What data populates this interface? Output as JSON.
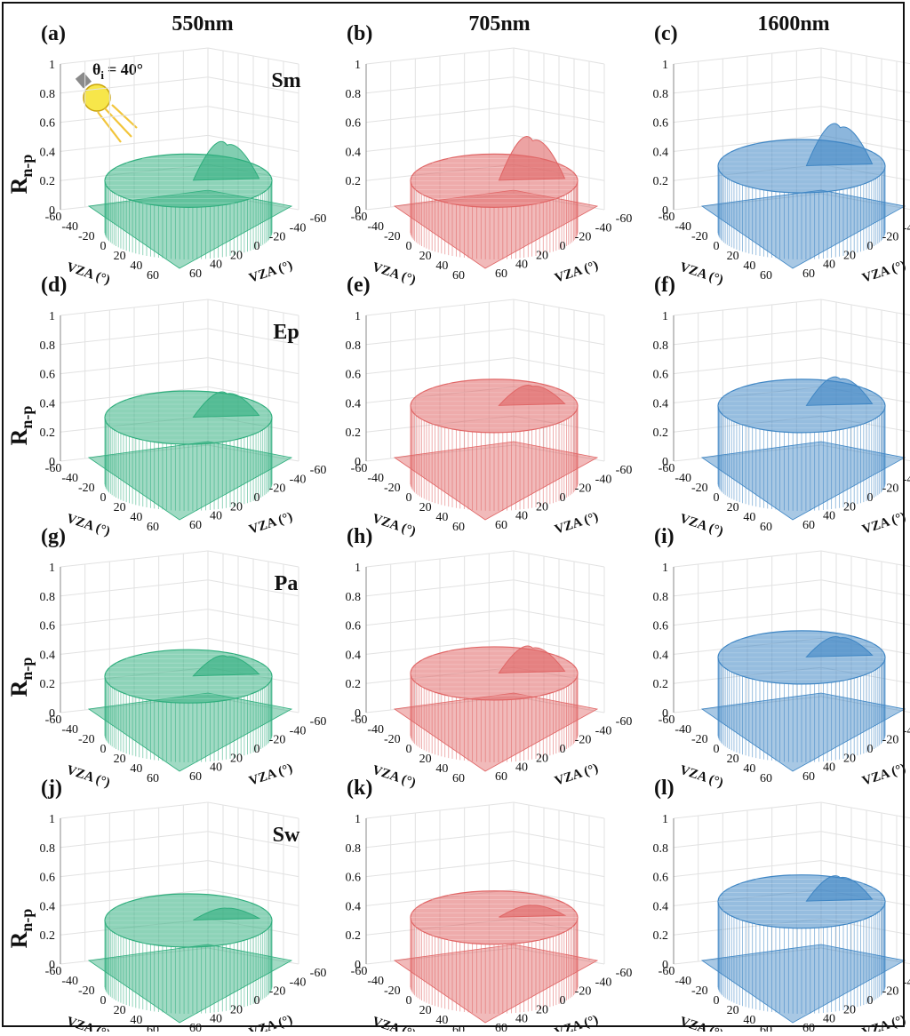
{
  "figure": {
    "column_headers": [
      "550nm",
      "705nm",
      "1600nm"
    ],
    "row_labels": [
      "Sm",
      "Ep",
      "Pa",
      "Sw"
    ],
    "ylabel_main": "R",
    "ylabel_sub": "n-p",
    "incidence_label": "θ",
    "incidence_sub": "i",
    "incidence_value": "= 40°",
    "light_icon": "light-bulb-icon"
  },
  "chart_data": [
    {
      "panel": "(a)",
      "type": "surface",
      "wavelength": "550nm",
      "material": "Sm",
      "color": "#2fae7d",
      "xlabel": "VZA (°)",
      "ylabel": "VZA (°)",
      "zlabel": "Rn-p",
      "xlim": [
        -60,
        60
      ],
      "ylim": [
        -60,
        60
      ],
      "zlim": [
        0,
        1
      ],
      "zticks": [
        0,
        0.2,
        0.4,
        0.6,
        0.8,
        1
      ],
      "xticks": [
        -60,
        -40,
        -20,
        0,
        20,
        40,
        60
      ],
      "yticks": [
        -60,
        -40,
        -20,
        0,
        20,
        40,
        60
      ],
      "base_level": 0.15,
      "peak_value": 0.33,
      "peak_location": [
        40,
        0
      ],
      "grid": true
    },
    {
      "panel": "(b)",
      "type": "surface",
      "wavelength": "705nm",
      "material": "Sm",
      "color": "#e06666",
      "xlabel": "VZA (°)",
      "ylabel": "VZA (°)",
      "zlabel": "Rn-p",
      "xlim": [
        -60,
        60
      ],
      "ylim": [
        -60,
        60
      ],
      "zlim": [
        0,
        1
      ],
      "zticks": [
        0,
        0.2,
        0.4,
        0.6,
        0.8,
        1
      ],
      "xticks": [
        -60,
        -40,
        -20,
        0,
        20,
        40,
        60
      ],
      "yticks": [
        -60,
        -40,
        -20,
        0,
        20,
        40,
        60
      ],
      "base_level": 0.15,
      "peak_value": 0.36,
      "peak_location": [
        40,
        0
      ],
      "grid": true
    },
    {
      "panel": "(c)",
      "type": "surface",
      "wavelength": "1600nm",
      "material": "Sm",
      "color": "#3f86c4",
      "xlabel": "VZA (°)",
      "ylabel": "VZA (°)",
      "zlabel": "Rn-p",
      "xlim": [
        -60,
        60
      ],
      "ylim": [
        -60,
        60
      ],
      "zlim": [
        0,
        1
      ],
      "zticks": [
        0,
        0.2,
        0.4,
        0.6,
        0.8,
        1
      ],
      "xticks": [
        -60,
        -40,
        -20,
        0,
        20,
        40,
        60
      ],
      "yticks": [
        -60,
        -40,
        -20,
        0,
        20,
        40,
        60
      ],
      "base_level": 0.25,
      "peak_value": 0.45,
      "peak_location": [
        40,
        0
      ],
      "grid": true
    },
    {
      "panel": "(d)",
      "type": "surface",
      "wavelength": "550nm",
      "material": "Ep",
      "color": "#2fae7d",
      "xlabel": "VZA (°)",
      "ylabel": "VZA (°)",
      "zlabel": "Rn-p",
      "xlim": [
        -60,
        60
      ],
      "ylim": [
        -60,
        60
      ],
      "zlim": [
        0,
        1
      ],
      "zticks": [
        0,
        0.2,
        0.4,
        0.6,
        0.8,
        1
      ],
      "xticks": [
        -60,
        -40,
        -20,
        0,
        20,
        40,
        60
      ],
      "yticks": [
        -60,
        -40,
        -20,
        0,
        20,
        40,
        60
      ],
      "base_level": 0.25,
      "peak_value": 0.35,
      "peak_location": [
        40,
        0
      ],
      "grid": true
    },
    {
      "panel": "(e)",
      "type": "surface",
      "wavelength": "705nm",
      "material": "Ep",
      "color": "#e06666",
      "xlabel": "VZA (°)",
      "ylabel": "VZA (°)",
      "zlabel": "Rn-p",
      "xlim": [
        -60,
        60
      ],
      "ylim": [
        -60,
        60
      ],
      "zlim": [
        0,
        1
      ],
      "zticks": [
        0,
        0.2,
        0.4,
        0.6,
        0.8,
        1
      ],
      "xticks": [
        -60,
        -40,
        -20,
        0,
        20,
        40,
        60
      ],
      "yticks": [
        -60,
        -40,
        -20,
        0,
        20,
        40,
        60
      ],
      "base_level": 0.33,
      "peak_value": 0.4,
      "peak_location": [
        40,
        0
      ],
      "grid": true
    },
    {
      "panel": "(f)",
      "type": "surface",
      "wavelength": "1600nm",
      "material": "Ep",
      "color": "#3f86c4",
      "xlabel": "VZA (°)",
      "ylabel": "VZA (°)",
      "zlabel": "Rn-p",
      "xlim": [
        -60,
        60
      ],
      "ylim": [
        -60,
        60
      ],
      "zlim": [
        0,
        1
      ],
      "zticks": [
        0,
        0.2,
        0.4,
        0.6,
        0.8,
        1
      ],
      "xticks": [
        -60,
        -40,
        -20,
        0,
        20,
        40,
        60
      ],
      "yticks": [
        -60,
        -40,
        -20,
        0,
        20,
        40,
        60
      ],
      "base_level": 0.33,
      "peak_value": 0.45,
      "peak_location": [
        40,
        0
      ],
      "grid": true
    },
    {
      "panel": "(g)",
      "type": "surface",
      "wavelength": "550nm",
      "material": "Pa",
      "color": "#2fae7d",
      "xlabel": "VZA (°)",
      "ylabel": "VZA (°)",
      "zlabel": "Rn-p",
      "xlim": [
        -60,
        60
      ],
      "ylim": [
        -60,
        60
      ],
      "zlim": [
        0,
        1
      ],
      "zticks": [
        0,
        0.2,
        0.4,
        0.6,
        0.8,
        1
      ],
      "xticks": [
        -60,
        -40,
        -20,
        0,
        20,
        40,
        60
      ],
      "yticks": [
        -60,
        -40,
        -20,
        0,
        20,
        40,
        60
      ],
      "base_level": 0.2,
      "peak_value": 0.27,
      "peak_location": [
        40,
        0
      ],
      "grid": true
    },
    {
      "panel": "(h)",
      "type": "surface",
      "wavelength": "705nm",
      "material": "Pa",
      "color": "#e06666",
      "xlabel": "VZA (°)",
      "ylabel": "VZA (°)",
      "zlabel": "Rn-p",
      "xlim": [
        -60,
        60
      ],
      "ylim": [
        -60,
        60
      ],
      "zlim": [
        0,
        1
      ],
      "zticks": [
        0,
        0.2,
        0.4,
        0.6,
        0.8,
        1
      ],
      "xticks": [
        -60,
        -40,
        -20,
        0,
        20,
        40,
        60
      ],
      "yticks": [
        -60,
        -40,
        -20,
        0,
        20,
        40,
        60
      ],
      "base_level": 0.22,
      "peak_value": 0.33,
      "peak_location": [
        40,
        0
      ],
      "grid": true
    },
    {
      "panel": "(i)",
      "type": "surface",
      "wavelength": "1600nm",
      "material": "Pa",
      "color": "#3f86c4",
      "xlabel": "VZA (°)",
      "ylabel": "VZA (°)",
      "zlabel": "Rn-p",
      "xlim": [
        -60,
        60
      ],
      "ylim": [
        -60,
        60
      ],
      "zlim": [
        0,
        1
      ],
      "zticks": [
        0,
        0.2,
        0.4,
        0.6,
        0.8,
        1
      ],
      "xticks": [
        -60,
        -40,
        -20,
        0,
        20,
        40,
        60
      ],
      "yticks": [
        -60,
        -40,
        -20,
        0,
        20,
        40,
        60
      ],
      "base_level": 0.33,
      "peak_value": 0.4,
      "peak_location": [
        40,
        0
      ],
      "grid": true
    },
    {
      "panel": "(j)",
      "type": "surface",
      "wavelength": "550nm",
      "material": "Sw",
      "color": "#2fae7d",
      "xlabel": "VZA (°)",
      "ylabel": "VZA (°)",
      "zlabel": "Rn-p",
      "xlim": [
        -60,
        60
      ],
      "ylim": [
        -60,
        60
      ],
      "zlim": [
        0,
        1
      ],
      "zticks": [
        0,
        0.2,
        0.4,
        0.6,
        0.8,
        1
      ],
      "xticks": [
        -60,
        -40,
        -20,
        0,
        20,
        40,
        60
      ],
      "yticks": [
        -60,
        -40,
        -20,
        0,
        20,
        40,
        60
      ],
      "base_level": 0.25,
      "peak_value": 0.27,
      "peak_location": [
        40,
        0
      ],
      "grid": true
    },
    {
      "panel": "(k)",
      "type": "surface",
      "wavelength": "705nm",
      "material": "Sw",
      "color": "#e06666",
      "xlabel": "VZA (°)",
      "ylabel": "VZA (°)",
      "zlabel": "Rn-p",
      "xlim": [
        -60,
        60
      ],
      "ylim": [
        -60,
        60
      ],
      "zlim": [
        0,
        1
      ],
      "zticks": [
        0,
        0.2,
        0.4,
        0.6,
        0.8,
        1
      ],
      "xticks": [
        -60,
        -40,
        -20,
        0,
        20,
        40,
        60
      ],
      "yticks": [
        -60,
        -40,
        -20,
        0,
        20,
        40,
        60
      ],
      "base_level": 0.27,
      "peak_value": 0.29,
      "peak_location": [
        40,
        0
      ],
      "grid": true
    },
    {
      "panel": "(l)",
      "type": "surface",
      "wavelength": "1600nm",
      "material": "Sw",
      "color": "#3f86c4",
      "xlabel": "VZA (°)",
      "ylabel": "VZA (°)",
      "zlabel": "Rn-p",
      "xlim": [
        -60,
        60
      ],
      "ylim": [
        -60,
        60
      ],
      "zlim": [
        0,
        1
      ],
      "zticks": [
        0,
        0.2,
        0.4,
        0.6,
        0.8,
        1
      ],
      "xticks": [
        -60,
        -40,
        -20,
        0,
        20,
        40,
        60
      ],
      "yticks": [
        -60,
        -40,
        -20,
        0,
        20,
        40,
        60
      ],
      "base_level": 0.38,
      "peak_value": 0.48,
      "peak_location": [
        40,
        0
      ],
      "grid": true
    }
  ]
}
